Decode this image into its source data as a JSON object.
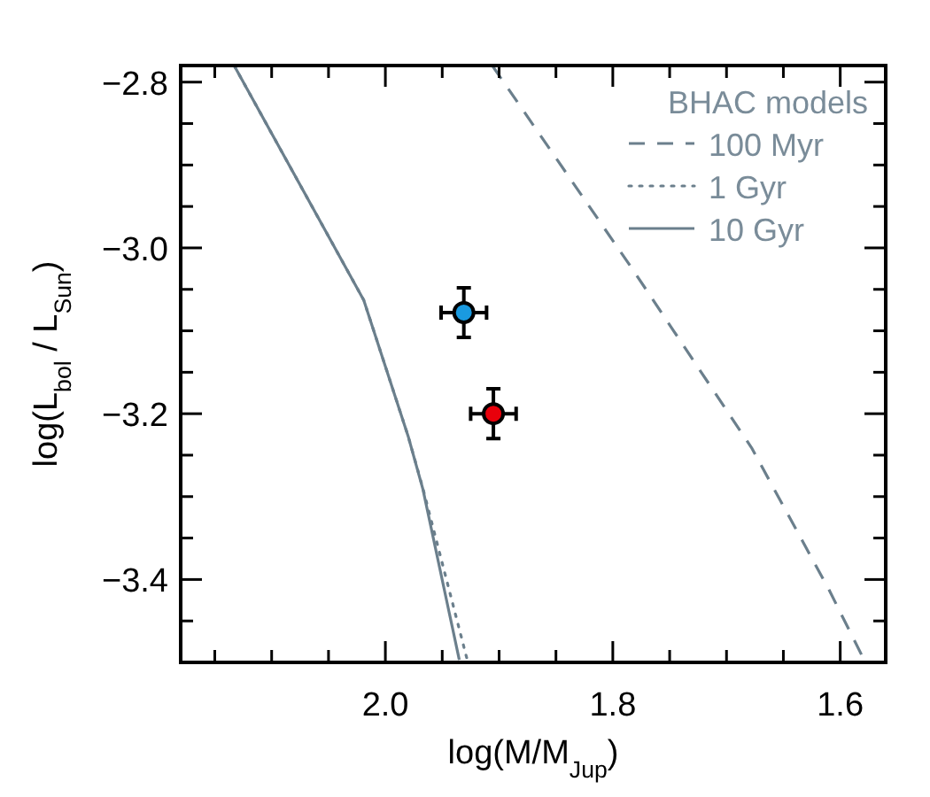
{
  "chart_data": {
    "type": "line",
    "xlabel": "log(M/M$_{Jup}$)",
    "ylabel": "log(L$_{bol}$ / L$_{Sun}$)",
    "legend_title": "BHAC models",
    "legend": "top right",
    "grid": false,
    "xlim": [
      2.18,
      1.56
    ],
    "ylim": [
      -3.5,
      -2.78
    ],
    "xticks": [
      {
        "value": 2.15,
        "label": null
      },
      {
        "value": 2.1,
        "label": null
      },
      {
        "value": 2.05,
        "label": null
      },
      {
        "value": 2.0,
        "label": "2.0"
      },
      {
        "value": 1.95,
        "label": null
      },
      {
        "value": 1.9,
        "label": null
      },
      {
        "value": 1.85,
        "label": null
      },
      {
        "value": 1.8,
        "label": "1.8"
      },
      {
        "value": 1.75,
        "label": null
      },
      {
        "value": 1.7,
        "label": null
      },
      {
        "value": 1.65,
        "label": null
      },
      {
        "value": 1.6,
        "label": "1.6"
      }
    ],
    "yticks": [
      {
        "value": -2.8,
        "label": "−2.8"
      },
      {
        "value": -2.85,
        "label": null
      },
      {
        "value": -2.9,
        "label": null
      },
      {
        "value": -2.95,
        "label": null
      },
      {
        "value": -3.0,
        "label": "−3.0"
      },
      {
        "value": -3.05,
        "label": null
      },
      {
        "value": -3.1,
        "label": null
      },
      {
        "value": -3.15,
        "label": null
      },
      {
        "value": -3.2,
        "label": "−3.2"
      },
      {
        "value": -3.25,
        "label": null
      },
      {
        "value": -3.3,
        "label": null
      },
      {
        "value": -3.35,
        "label": null
      },
      {
        "value": -3.4,
        "label": "−3.4"
      },
      {
        "value": -3.45,
        "label": null
      }
    ],
    "series": [
      {
        "name": "100 Myr",
        "line_style": "dashed",
        "color": "#6b7f8c",
        "x": [
          1.906,
          1.782,
          1.678,
          1.61,
          1.579
        ],
        "values": [
          -2.78,
          -3.027,
          -3.241,
          -3.412,
          -3.497
        ]
      },
      {
        "name": "1 Gyr",
        "line_style": "dotted",
        "color": "#6b7f8c",
        "x": [
          2.133,
          2.019,
          1.98,
          1.967,
          1.928
        ],
        "values": [
          -2.78,
          -3.063,
          -3.227,
          -3.29,
          -3.497
        ]
      },
      {
        "name": "10 Gyr",
        "line_style": "solid",
        "color": "#6b7f8c",
        "x": [
          2.133,
          2.019,
          1.98,
          1.967,
          1.935
        ],
        "values": [
          -2.78,
          -3.063,
          -3.227,
          -3.291,
          -3.497
        ]
      },
      {
        "type": "scatter",
        "marker": "circle",
        "color": "#1a9ae0",
        "x": [
          1.931
        ],
        "values": [
          -3.078
        ],
        "errors": [
          0.03
        ],
        "xerrors": [
          0.02
        ]
      },
      {
        "type": "scatter",
        "marker": "circle",
        "color": "#e8000b",
        "x": [
          1.905
        ],
        "values": [
          -3.2
        ],
        "errors": [
          0.03
        ],
        "xerrors": [
          0.02
        ]
      }
    ]
  }
}
